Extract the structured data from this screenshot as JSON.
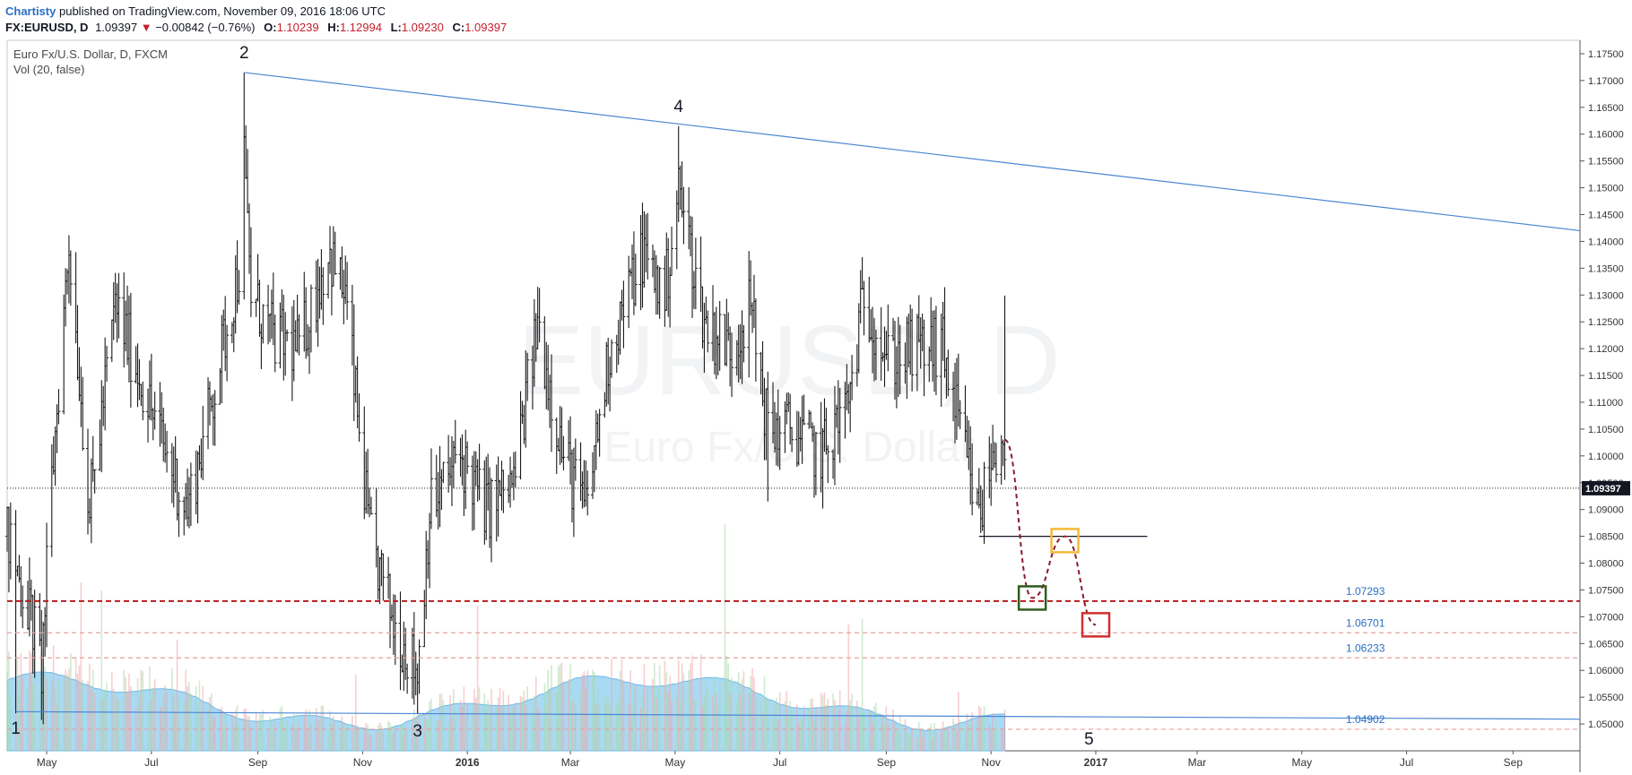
{
  "header": {
    "author": "Chartisty",
    "published": "published on TradingView.com, November 09, 2016 18:06 UTC",
    "symbol": "FX:EURUSD, D",
    "last": "1.09397",
    "change": "−0.00842 (−0.76%)",
    "ohlc": {
      "O": "1.10239",
      "H": "1.12994",
      "L": "1.09230",
      "C": "1.09397"
    }
  },
  "legend": {
    "title": "Euro Fx/U.S. Dollar, D, FXCM",
    "volume": "Vol (20, false)"
  },
  "watermark": {
    "line1": "EURUSD, D",
    "line2": "Euro Fx/U.S. Dollar"
  },
  "colors": {
    "trendline": "#4a86d4",
    "price_bars": "#1a1a1a",
    "volume_area": "#8ccdf0",
    "level_main": "#b71c1c",
    "level_minor": "#e8a0a0",
    "box_green": "#2e5d1e",
    "box_yellow": "#f5b93a",
    "box_red": "#d32f2f",
    "path": "#8b1a2a",
    "last_price_bg": "#131722"
  },
  "chart_data": {
    "type": "bar",
    "ylim": [
      1.045,
      1.1775
    ],
    "y_ticks": [
      "1.17500",
      "1.17000",
      "1.16500",
      "1.16000",
      "1.15500",
      "1.15000",
      "1.14500",
      "1.14000",
      "1.13500",
      "1.13000",
      "1.12500",
      "1.12000",
      "1.11500",
      "1.11000",
      "1.10500",
      "1.10000",
      "1.09500",
      "1.09000",
      "1.08500",
      "1.08000",
      "1.07500",
      "1.07000",
      "1.06500",
      "1.06000",
      "1.05500",
      "1.05000"
    ],
    "x_labels": [
      "May",
      "Jul",
      "Sep",
      "Nov",
      "2016",
      "Mar",
      "May",
      "Jul",
      "Sep",
      "Nov",
      "2017",
      "Mar",
      "May",
      "Jul",
      "Sep"
    ],
    "x_label_dates": [
      "2015-05-01",
      "2015-07-01",
      "2015-09-01",
      "2015-11-01",
      "2016-01-01",
      "2016-03-01",
      "2016-05-01",
      "2016-07-01",
      "2016-09-01",
      "2016-11-01",
      "2017-01-01",
      "2017-03-01",
      "2017-05-01",
      "2017-07-01",
      "2017-09-01"
    ],
    "x_range": [
      "2015-04-08",
      "2017-10-10"
    ],
    "last_price": 1.09397,
    "price_path": [
      [
        "2015-04-08",
        1.085
      ],
      [
        "2015-04-22",
        1.07
      ],
      [
        "2015-04-28",
        1.06
      ],
      [
        "2015-05-04",
        1.095
      ],
      [
        "2015-05-14",
        1.14
      ],
      [
        "2015-05-26",
        1.09
      ],
      [
        "2015-06-10",
        1.128
      ],
      [
        "2015-06-24",
        1.115
      ],
      [
        "2015-07-10",
        1.1
      ],
      [
        "2015-07-22",
        1.09
      ],
      [
        "2015-08-05",
        1.11
      ],
      [
        "2015-08-21",
        1.135
      ],
      [
        "2015-08-24",
        1.155
      ],
      [
        "2015-08-28",
        1.13
      ],
      [
        "2015-09-10",
        1.122
      ],
      [
        "2015-09-25",
        1.12
      ],
      [
        "2015-10-12",
        1.138
      ],
      [
        "2015-10-22",
        1.13
      ],
      [
        "2015-11-05",
        1.085
      ],
      [
        "2015-11-20",
        1.068
      ],
      [
        "2015-12-03",
        1.06
      ],
      [
        "2015-12-10",
        1.09
      ],
      [
        "2015-12-28",
        1.1
      ],
      [
        "2016-01-12",
        1.09
      ],
      [
        "2016-01-28",
        1.095
      ],
      [
        "2016-02-11",
        1.125
      ],
      [
        "2016-02-26",
        1.1
      ],
      [
        "2016-03-10",
        1.09
      ],
      [
        "2016-03-24",
        1.12
      ],
      [
        "2016-04-12",
        1.138
      ],
      [
        "2016-04-25",
        1.13
      ],
      [
        "2016-05-03",
        1.15
      ],
      [
        "2016-05-18",
        1.125
      ],
      [
        "2016-06-02",
        1.12
      ],
      [
        "2016-06-14",
        1.128
      ],
      [
        "2016-06-24",
        1.105
      ],
      [
        "2016-07-08",
        1.105
      ],
      [
        "2016-07-25",
        1.1
      ],
      [
        "2016-08-10",
        1.11
      ],
      [
        "2016-08-19",
        1.13
      ],
      [
        "2016-09-02",
        1.118
      ],
      [
        "2016-09-20",
        1.12
      ],
      [
        "2016-10-04",
        1.12
      ],
      [
        "2016-10-17",
        1.1
      ],
      [
        "2016-10-25",
        1.088
      ],
      [
        "2016-10-31",
        1.098
      ],
      [
        "2016-11-08",
        1.105
      ],
      [
        "2016-11-09",
        1.094
      ]
    ],
    "swing_points": [
      {
        "date": "2015-04-13",
        "low": 1.052
      },
      {
        "date": "2015-08-24",
        "high": 1.1715
      },
      {
        "date": "2015-12-03",
        "low": 1.052
      },
      {
        "date": "2016-05-03",
        "high": 1.1615
      },
      {
        "date": "2016-06-24",
        "low": 1.0915
      },
      {
        "date": "2016-11-09",
        "high": 1.1299
      }
    ],
    "wave_labels": [
      {
        "text": "1",
        "date": "2015-04-13",
        "price": 1.0525,
        "place": "below"
      },
      {
        "text": "2",
        "date": "2015-08-24",
        "price": 1.1715,
        "place": "above"
      },
      {
        "text": "3",
        "date": "2015-12-03",
        "price": 1.052,
        "place": "below"
      },
      {
        "text": "4",
        "date": "2016-05-03",
        "price": 1.1615,
        "place": "above"
      },
      {
        "text": "5",
        "date": "2016-12-28",
        "price": 1.0505,
        "place": "below"
      }
    ],
    "trendlines": [
      {
        "from": [
          "2015-08-24",
          1.1715
        ],
        "to": [
          "2017-10-10",
          1.142
        ]
      },
      {
        "from": [
          "2015-04-13",
          1.0523
        ],
        "to": [
          "2017-10-10",
          1.0509
        ]
      }
    ],
    "horizontal_levels": [
      {
        "price": 1.07293,
        "label": "1.07293",
        "style": "main"
      },
      {
        "price": 1.06701,
        "label": "1.06701",
        "style": "minor"
      },
      {
        "price": 1.06233,
        "label": "1.06233",
        "style": "minor"
      },
      {
        "price": 1.04902,
        "label": "1.04902",
        "style": "minor"
      }
    ],
    "support_line": {
      "from": "2016-10-25",
      "to": "2017-01-31",
      "price": 1.085
    },
    "projection": {
      "path": [
        [
          "2016-11-09",
          1.103
        ],
        [
          "2016-11-25",
          1.0735
        ],
        [
          "2016-12-14",
          1.085
        ],
        [
          "2017-01-01",
          1.0685
        ]
      ],
      "boxes": [
        {
          "color": "green",
          "date": "2016-11-25",
          "price": 1.0735
        },
        {
          "color": "yellow",
          "date": "2016-12-14",
          "price": 1.0842
        },
        {
          "color": "red",
          "date": "2017-01-01",
          "price": 1.0685
        }
      ]
    },
    "volume": {
      "from": "2015-04-08",
      "to": "2016-11-09"
    }
  }
}
